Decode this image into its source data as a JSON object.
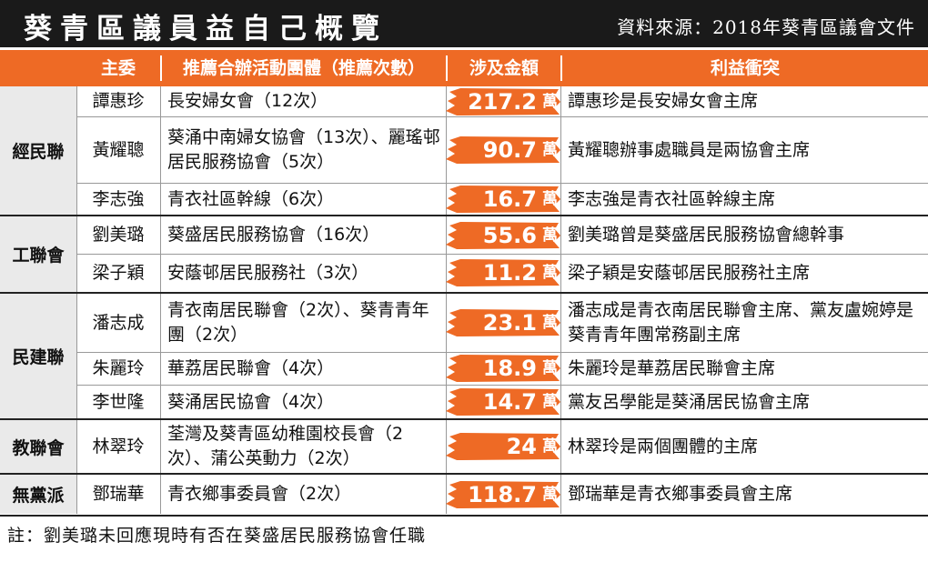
{
  "title": "葵青區議員益自己概覽",
  "source": "資料來源：2018年葵青區議會文件",
  "headers": {
    "member": "主委",
    "org": "推薦合辦活動團體（推薦次數）",
    "amount": "涉及金額",
    "conflict": "利益衝突"
  },
  "parties": [
    {
      "name": "經民聯"
    },
    {
      "name": "工聯會"
    },
    {
      "name": "民建聯"
    },
    {
      "name": "教聯會"
    },
    {
      "name": "無黨派"
    }
  ],
  "rows": [
    {
      "member": "譚惠珍",
      "org": "長安婦女會（12次）",
      "amount": "217.2",
      "unit": "萬",
      "conflict": "譚惠珍是長安婦女會主席"
    },
    {
      "member": "黃耀聰",
      "org": "葵涌中南婦女協會（13次）、麗瑤邨居民服務協會（5次）",
      "amount": "90.7",
      "unit": "萬",
      "conflict": "黃耀聰辦事處職員是兩協會主席"
    },
    {
      "member": "李志強",
      "org": "青衣社區幹線（6次）",
      "amount": "16.7",
      "unit": "萬",
      "conflict": "李志強是青衣社區幹線主席"
    },
    {
      "member": "劉美璐",
      "org": "葵盛居民服務協會（16次）",
      "amount": "55.6",
      "unit": "萬",
      "conflict": "劉美璐曾是葵盛居民服務協會總幹事"
    },
    {
      "member": "梁子穎",
      "org": "安蔭邨居民服務社（3次）",
      "amount": "11.2",
      "unit": "萬",
      "conflict": "梁子穎是安蔭邨居民服務社主席"
    },
    {
      "member": "潘志成",
      "org": "青衣南居民聯會（2次）、葵青青年團（2次）",
      "amount": "23.1",
      "unit": "萬",
      "conflict": "潘志成是青衣南居民聯會主席、黨友盧婉婷是葵青青年團常務副主席"
    },
    {
      "member": "朱麗玲",
      "org": "華荔居民聯會（4次）",
      "amount": "18.9",
      "unit": "萬",
      "conflict": "朱麗玲是華荔居民聯會主席"
    },
    {
      "member": "李世隆",
      "org": "葵涌居民協會（4次）",
      "amount": "14.7",
      "unit": "萬",
      "conflict": "黨友呂學能是葵涌居民協會主席"
    },
    {
      "member": "林翠玲",
      "org": "荃灣及葵青區幼稚園校長會（2次）、蒲公英動力（2次）",
      "amount": "24",
      "unit": "萬",
      "conflict": "林翠玲是兩個團體的主席"
    },
    {
      "member": "鄧瑞華",
      "org": "青衣鄉事委員會（2次）",
      "amount": "118.7",
      "unit": "萬",
      "conflict": "鄧瑞華是青衣鄉事委員會主席"
    }
  ],
  "note": "註：劉美璐未回應現時有否在葵盛居民服務協會任職",
  "colors": {
    "accent": "#ee6a25",
    "title_bg": "#1a1a1a",
    "party_bg": "#eaeaea"
  }
}
